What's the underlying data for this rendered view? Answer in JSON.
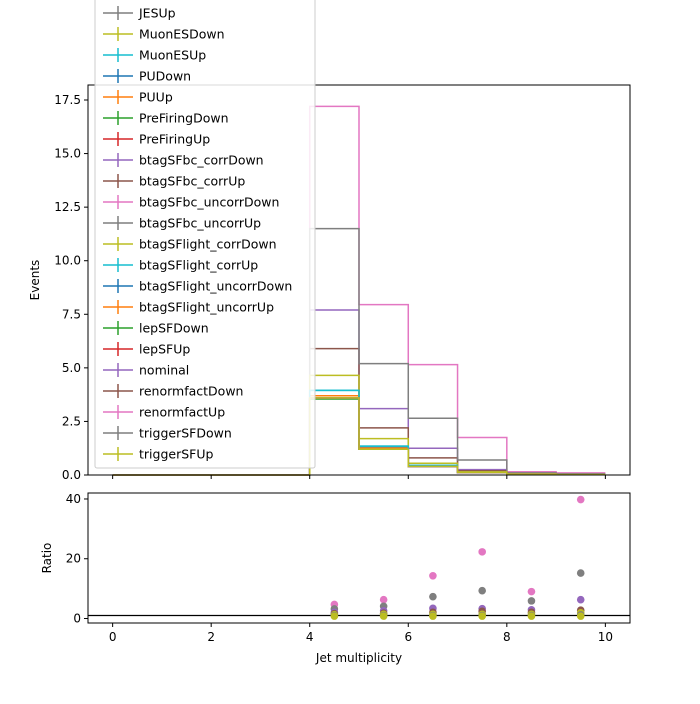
{
  "chart_data": [
    {
      "type": "line",
      "ylabel": "Events",
      "xlim": [
        -0.5,
        10.5
      ],
      "ylim": [
        0,
        18.2
      ],
      "yticks": [
        0.0,
        2.5,
        5.0,
        7.5,
        10.0,
        12.5,
        15.0,
        17.5
      ],
      "yticklabels": [
        "0.0",
        "2.5",
        "5.0",
        "7.5",
        "10.0",
        "12.5",
        "15.0",
        "17.5"
      ],
      "bin_edges": [
        0,
        1,
        2,
        3,
        4,
        5,
        6,
        7,
        8,
        9,
        10
      ],
      "legend_placement": "upper-left",
      "series": [
        {
          "name": "JESUp",
          "color": "#7f7f7f",
          "values": [
            0,
            0,
            0,
            0,
            3.6,
            1.3,
            0.45,
            0.15,
            0.05,
            0.02
          ]
        },
        {
          "name": "MuonESDown",
          "color": "#bcbd22",
          "values": [
            0,
            0,
            0,
            0,
            3.55,
            1.25,
            0.4,
            0.12,
            0.04,
            0.01
          ]
        },
        {
          "name": "MuonESUp",
          "color": "#17becf",
          "values": [
            0,
            0,
            0,
            0,
            3.95,
            1.35,
            0.45,
            0.13,
            0.04,
            0.01
          ]
        },
        {
          "name": "PUDown",
          "color": "#1f77b4",
          "values": [
            0,
            0,
            0,
            0,
            3.6,
            1.2,
            0.4,
            0.12,
            0.04,
            0.01
          ]
        },
        {
          "name": "PUUp",
          "color": "#ff7f0e",
          "values": [
            0,
            0,
            0,
            0,
            3.7,
            1.25,
            0.42,
            0.13,
            0.04,
            0.01
          ]
        },
        {
          "name": "PreFiringDown",
          "color": "#2ca02c",
          "values": [
            0,
            0,
            0,
            0,
            3.55,
            1.2,
            0.4,
            0.12,
            0.04,
            0.01
          ]
        },
        {
          "name": "PreFiringUp",
          "color": "#d62728",
          "values": [
            0,
            0,
            0,
            0,
            3.6,
            1.2,
            0.4,
            0.12,
            0.04,
            0.01
          ]
        },
        {
          "name": "btagSFbc_corrDown",
          "color": "#9467bd",
          "values": [
            0,
            0,
            0,
            0,
            7.7,
            3.1,
            1.25,
            0.25,
            0.07,
            0.03
          ]
        },
        {
          "name": "btagSFbc_corrUp",
          "color": "#8c564b",
          "values": [
            0,
            0,
            0,
            0,
            5.9,
            2.2,
            0.8,
            0.2,
            0.06,
            0.02
          ]
        },
        {
          "name": "btagSFbc_uncorrDown",
          "color": "#e377c2",
          "values": [
            0,
            0,
            0,
            0,
            17.2,
            7.95,
            5.15,
            1.75,
            0.15,
            0.1
          ]
        },
        {
          "name": "btagSFbc_uncorrUp",
          "color": "#7f7f7f",
          "values": [
            0,
            0,
            0,
            0,
            11.5,
            5.2,
            2.65,
            0.7,
            0.1,
            0.05
          ]
        },
        {
          "name": "btagSFlight_corrDown",
          "color": "#bcbd22",
          "values": [
            0,
            0,
            0,
            0,
            4.65,
            1.7,
            0.55,
            0.15,
            0.05,
            0.02
          ]
        },
        {
          "name": "btagSFlight_corrUp",
          "color": "#17becf",
          "values": [
            0,
            0,
            0,
            0,
            3.95,
            1.35,
            0.45,
            0.13,
            0.04,
            0.01
          ]
        },
        {
          "name": "btagSFlight_uncorrDown",
          "color": "#1f77b4",
          "values": [
            0,
            0,
            0,
            0,
            3.6,
            1.2,
            0.4,
            0.12,
            0.04,
            0.01
          ]
        },
        {
          "name": "btagSFlight_uncorrUp",
          "color": "#ff7f0e",
          "values": [
            0,
            0,
            0,
            0,
            3.6,
            1.2,
            0.4,
            0.12,
            0.04,
            0.01
          ]
        },
        {
          "name": "lepSFDown",
          "color": "#2ca02c",
          "values": [
            0,
            0,
            0,
            0,
            3.55,
            1.2,
            0.4,
            0.12,
            0.04,
            0.01
          ]
        },
        {
          "name": "lepSFUp",
          "color": "#d62728",
          "values": [
            0,
            0,
            0,
            0,
            3.6,
            1.2,
            0.4,
            0.12,
            0.04,
            0.01
          ]
        },
        {
          "name": "nominal",
          "color": "#9467bd",
          "values": [
            0,
            0,
            0,
            0,
            3.6,
            1.2,
            0.4,
            0.12,
            0.04,
            0.01
          ]
        },
        {
          "name": "renormfactDown",
          "color": "#8c564b",
          "values": [
            0,
            0,
            0,
            0,
            3.6,
            1.2,
            0.4,
            0.12,
            0.04,
            0.01
          ]
        },
        {
          "name": "renormfactUp",
          "color": "#e377c2",
          "values": [
            0,
            0,
            0,
            0,
            3.6,
            1.2,
            0.4,
            0.12,
            0.04,
            0.01
          ]
        },
        {
          "name": "triggerSFDown",
          "color": "#7f7f7f",
          "values": [
            0,
            0,
            0,
            0,
            3.6,
            1.2,
            0.4,
            0.12,
            0.04,
            0.01
          ]
        },
        {
          "name": "triggerSFUp",
          "color": "#bcbd22",
          "values": [
            0,
            0,
            0,
            0,
            3.6,
            1.2,
            0.4,
            0.12,
            0.04,
            0.01
          ]
        }
      ]
    },
    {
      "type": "scatter",
      "xlabel": "Jet multiplicity",
      "ylabel": "Ratio",
      "xlim": [
        -0.5,
        10.5
      ],
      "ylim": [
        -1.5,
        42
      ],
      "xticks": [
        0,
        2,
        4,
        6,
        8,
        10
      ],
      "xticklabels": [
        "0",
        "2",
        "4",
        "6",
        "8",
        "10"
      ],
      "yticks": [
        0,
        20,
        40
      ],
      "yticklabels": [
        "0",
        "20",
        "40"
      ],
      "reference_line": 1,
      "points": [
        {
          "x": 4.5,
          "y": 4.7,
          "color": "#e377c2"
        },
        {
          "x": 4.5,
          "y": 3.2,
          "color": "#7f7f7f"
        },
        {
          "x": 4.5,
          "y": 2.1,
          "color": "#9467bd"
        },
        {
          "x": 4.5,
          "y": 1.6,
          "color": "#8c564b"
        },
        {
          "x": 4.5,
          "y": 1.3,
          "color": "#bcbd22"
        },
        {
          "x": 4.5,
          "y": 1.0,
          "color": "#7f7f7f"
        },
        {
          "x": 4.5,
          "y": 0.8,
          "color": "#bcbd22"
        },
        {
          "x": 5.5,
          "y": 6.3,
          "color": "#e377c2"
        },
        {
          "x": 5.5,
          "y": 4.1,
          "color": "#7f7f7f"
        },
        {
          "x": 5.5,
          "y": 2.6,
          "color": "#9467bd"
        },
        {
          "x": 5.5,
          "y": 1.8,
          "color": "#8c564b"
        },
        {
          "x": 5.5,
          "y": 1.4,
          "color": "#bcbd22"
        },
        {
          "x": 5.5,
          "y": 1.0,
          "color": "#7f7f7f"
        },
        {
          "x": 5.5,
          "y": 0.8,
          "color": "#bcbd22"
        },
        {
          "x": 6.5,
          "y": 14.3,
          "color": "#e377c2"
        },
        {
          "x": 6.5,
          "y": 7.3,
          "color": "#7f7f7f"
        },
        {
          "x": 6.5,
          "y": 3.4,
          "color": "#9467bd"
        },
        {
          "x": 6.5,
          "y": 2.1,
          "color": "#8c564b"
        },
        {
          "x": 6.5,
          "y": 1.4,
          "color": "#bcbd22"
        },
        {
          "x": 6.5,
          "y": 1.0,
          "color": "#7f7f7f"
        },
        {
          "x": 6.5,
          "y": 0.8,
          "color": "#bcbd22"
        },
        {
          "x": 7.5,
          "y": 22.3,
          "color": "#e377c2"
        },
        {
          "x": 7.5,
          "y": 9.3,
          "color": "#7f7f7f"
        },
        {
          "x": 7.5,
          "y": 3.3,
          "color": "#9467bd"
        },
        {
          "x": 7.5,
          "y": 2.4,
          "color": "#8c564b"
        },
        {
          "x": 7.5,
          "y": 1.4,
          "color": "#bcbd22"
        },
        {
          "x": 7.5,
          "y": 1.0,
          "color": "#7f7f7f"
        },
        {
          "x": 7.5,
          "y": 0.8,
          "color": "#bcbd22"
        },
        {
          "x": 8.5,
          "y": 9.0,
          "color": "#e377c2"
        },
        {
          "x": 8.5,
          "y": 5.9,
          "color": "#7f7f7f"
        },
        {
          "x": 8.5,
          "y": 2.9,
          "color": "#9467bd"
        },
        {
          "x": 8.5,
          "y": 2.1,
          "color": "#8c564b"
        },
        {
          "x": 8.5,
          "y": 1.4,
          "color": "#bcbd22"
        },
        {
          "x": 8.5,
          "y": 1.0,
          "color": "#7f7f7f"
        },
        {
          "x": 8.5,
          "y": 0.8,
          "color": "#bcbd22"
        },
        {
          "x": 9.5,
          "y": 39.8,
          "color": "#e377c2"
        },
        {
          "x": 9.5,
          "y": 15.2,
          "color": "#7f7f7f"
        },
        {
          "x": 9.5,
          "y": 6.3,
          "color": "#9467bd"
        },
        {
          "x": 9.5,
          "y": 2.8,
          "color": "#8c564b"
        },
        {
          "x": 9.5,
          "y": 1.9,
          "color": "#bcbd22"
        },
        {
          "x": 9.5,
          "y": 1.2,
          "color": "#7f7f7f"
        },
        {
          "x": 9.5,
          "y": 0.8,
          "color": "#bcbd22"
        }
      ]
    }
  ]
}
